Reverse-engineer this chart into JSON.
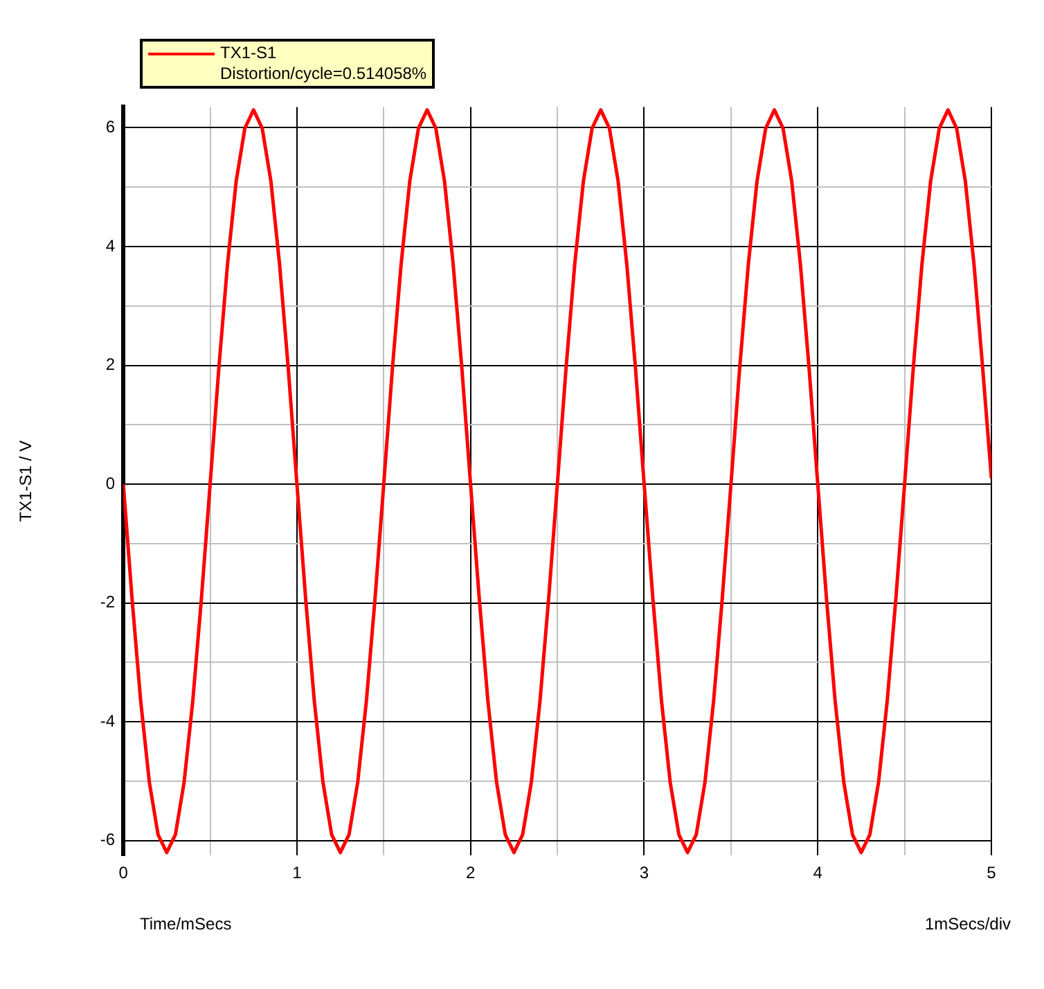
{
  "chart_data": {
    "type": "line",
    "xlabel": "Time/mSecs",
    "ylabel": "TX1-S1 / V",
    "annotations": [
      "Distortion/cycle=0.514058%",
      "1mSecs/div"
    ],
    "x": [
      0,
      0.05,
      0.1,
      0.15,
      0.2,
      0.25,
      0.3,
      0.35,
      0.4,
      0.45,
      0.5,
      0.55,
      0.6,
      0.65,
      0.7,
      0.75,
      0.8,
      0.85,
      0.9,
      0.95,
      1,
      1.05,
      1.1,
      1.15,
      1.2,
      1.25,
      1.3,
      1.35,
      1.4,
      1.45,
      1.5,
      1.55,
      1.6,
      1.65,
      1.7,
      1.75,
      1.8,
      1.85,
      1.9,
      1.95,
      2,
      2.05,
      2.1,
      2.15,
      2.2,
      2.25,
      2.3,
      2.35,
      2.4,
      2.45,
      2.5,
      2.55,
      2.6,
      2.65,
      2.7,
      2.75,
      2.8,
      2.85,
      2.9,
      2.95,
      3,
      3.05,
      3.1,
      3.15,
      3.2,
      3.25,
      3.3,
      3.35,
      3.4,
      3.45,
      3.5,
      3.55,
      3.6,
      3.65,
      3.7,
      3.75,
      3.8,
      3.85,
      3.9,
      3.95,
      4,
      4.05,
      4.1,
      4.15,
      4.2,
      4.25,
      4.3,
      4.35,
      4.4,
      4.45,
      4.5,
      4.55,
      4.6,
      4.65,
      4.7,
      4.75,
      4.8,
      4.85,
      4.9,
      4.95,
      5
    ],
    "series": [
      {
        "name": "TX1-S1",
        "color": "#ff0000",
        "values": [
          0,
          -1.92,
          -3.65,
          -5.02,
          -5.9,
          -6.2,
          -5.9,
          -5.02,
          -3.65,
          -1.92,
          0,
          1.95,
          3.7,
          5.1,
          5.99,
          6.3,
          5.99,
          5.1,
          3.7,
          1.95,
          0,
          -1.92,
          -3.65,
          -5.02,
          -5.9,
          -6.2,
          -5.9,
          -5.02,
          -3.65,
          -1.92,
          0,
          1.95,
          3.7,
          5.1,
          5.99,
          6.3,
          5.99,
          5.1,
          3.7,
          1.95,
          0,
          -1.92,
          -3.65,
          -5.02,
          -5.9,
          -6.2,
          -5.9,
          -5.02,
          -3.65,
          -1.92,
          0,
          1.95,
          3.7,
          5.1,
          5.99,
          6.3,
          5.99,
          5.1,
          3.7,
          1.95,
          0,
          -1.92,
          -3.65,
          -5.02,
          -5.9,
          -6.2,
          -5.9,
          -5.02,
          -3.65,
          -1.92,
          0,
          1.95,
          3.7,
          5.1,
          5.99,
          6.3,
          5.99,
          5.1,
          3.7,
          1.95,
          0,
          -1.92,
          -3.65,
          -5.02,
          -5.9,
          -6.2,
          -5.9,
          -5.02,
          -3.65,
          -1.92,
          0,
          1.95,
          3.7,
          5.1,
          5.99,
          6.3,
          5.99,
          5.1,
          3.7,
          1.95,
          0.1
        ]
      }
    ],
    "xlim": [
      0,
      5
    ],
    "xticks": [
      0,
      {
        "value": 0.5,
        "label": null
      },
      1,
      {
        "value": 1.5,
        "label": null
      },
      2,
      {
        "value": 2.5,
        "label": null
      },
      3,
      {
        "value": 3.5,
        "label": null
      },
      4,
      {
        "value": 4.5,
        "label": null
      },
      5
    ],
    "ylim": [
      -6.25,
      6.35
    ],
    "yticks": [
      -6,
      {
        "value": -5,
        "label": null
      },
      -4,
      {
        "value": -3,
        "label": null
      },
      -2,
      {
        "value": -1,
        "label": null
      },
      0,
      {
        "value": 1,
        "label": null
      },
      2,
      {
        "value": 3,
        "label": null
      },
      4,
      {
        "value": 5,
        "label": null
      },
      6
    ],
    "grid": true,
    "legend": "top left",
    "marker": "none",
    "line_style": "solid"
  }
}
